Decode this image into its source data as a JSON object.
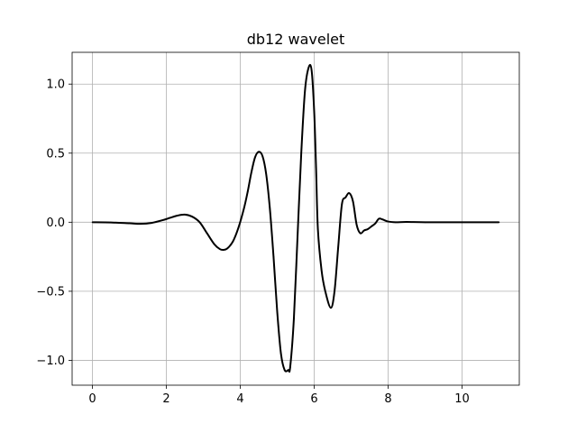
{
  "chart_data": {
    "type": "line",
    "title": "db12 wavelet",
    "xlabel": "",
    "ylabel": "",
    "xlim": [
      -0.55,
      11.55
    ],
    "ylim": [
      -1.18,
      1.23
    ],
    "xticks": [
      0,
      2,
      4,
      6,
      8,
      10
    ],
    "xtick_labels": [
      "0",
      "2",
      "4",
      "6",
      "8",
      "10"
    ],
    "yticks": [
      -1.0,
      -0.5,
      0.0,
      0.5,
      1.0
    ],
    "ytick_labels": [
      "−1.0",
      "−0.5",
      "0.0",
      "0.5",
      "1.0"
    ],
    "grid": true,
    "line_color": "#000000",
    "series": [
      {
        "x": [
          0,
          0.5,
          1.0,
          1.3,
          1.6,
          1.9,
          2.1,
          2.3,
          2.5,
          2.7,
          2.9,
          3.1,
          3.3,
          3.45,
          3.55,
          3.65,
          3.8,
          3.95,
          4.1,
          4.2,
          4.3,
          4.4,
          4.5,
          4.6,
          4.7,
          4.8,
          4.9,
          5.0,
          5.1,
          5.2,
          5.3,
          5.35,
          5.45,
          5.55,
          5.65,
          5.75,
          5.85,
          5.93,
          6.0,
          6.05,
          6.1,
          6.2,
          6.3,
          6.45,
          6.55,
          6.65,
          6.75,
          6.85,
          6.95,
          7.05,
          7.15,
          7.25,
          7.35,
          7.45,
          7.55,
          7.65,
          7.75,
          7.85,
          8.0,
          8.2,
          8.5,
          9.0,
          10.0,
          11.0
        ],
        "y": [
          0,
          -0.002,
          -0.008,
          -0.012,
          -0.005,
          0.015,
          0.032,
          0.048,
          0.055,
          0.04,
          0.0,
          -0.08,
          -0.16,
          -0.195,
          -0.2,
          -0.19,
          -0.14,
          -0.04,
          0.1,
          0.22,
          0.36,
          0.47,
          0.51,
          0.48,
          0.35,
          0.1,
          -0.25,
          -0.65,
          -0.95,
          -1.07,
          -1.07,
          -1.05,
          -0.7,
          -0.1,
          0.5,
          0.95,
          1.12,
          1.1,
          0.8,
          0.4,
          -0.05,
          -0.35,
          -0.5,
          -0.62,
          -0.5,
          -0.18,
          0.13,
          0.18,
          0.21,
          0.15,
          -0.02,
          -0.08,
          -0.06,
          -0.05,
          -0.03,
          -0.01,
          0.025,
          0.02,
          0.005,
          0.0,
          0.002,
          0,
          0,
          0
        ]
      }
    ]
  }
}
